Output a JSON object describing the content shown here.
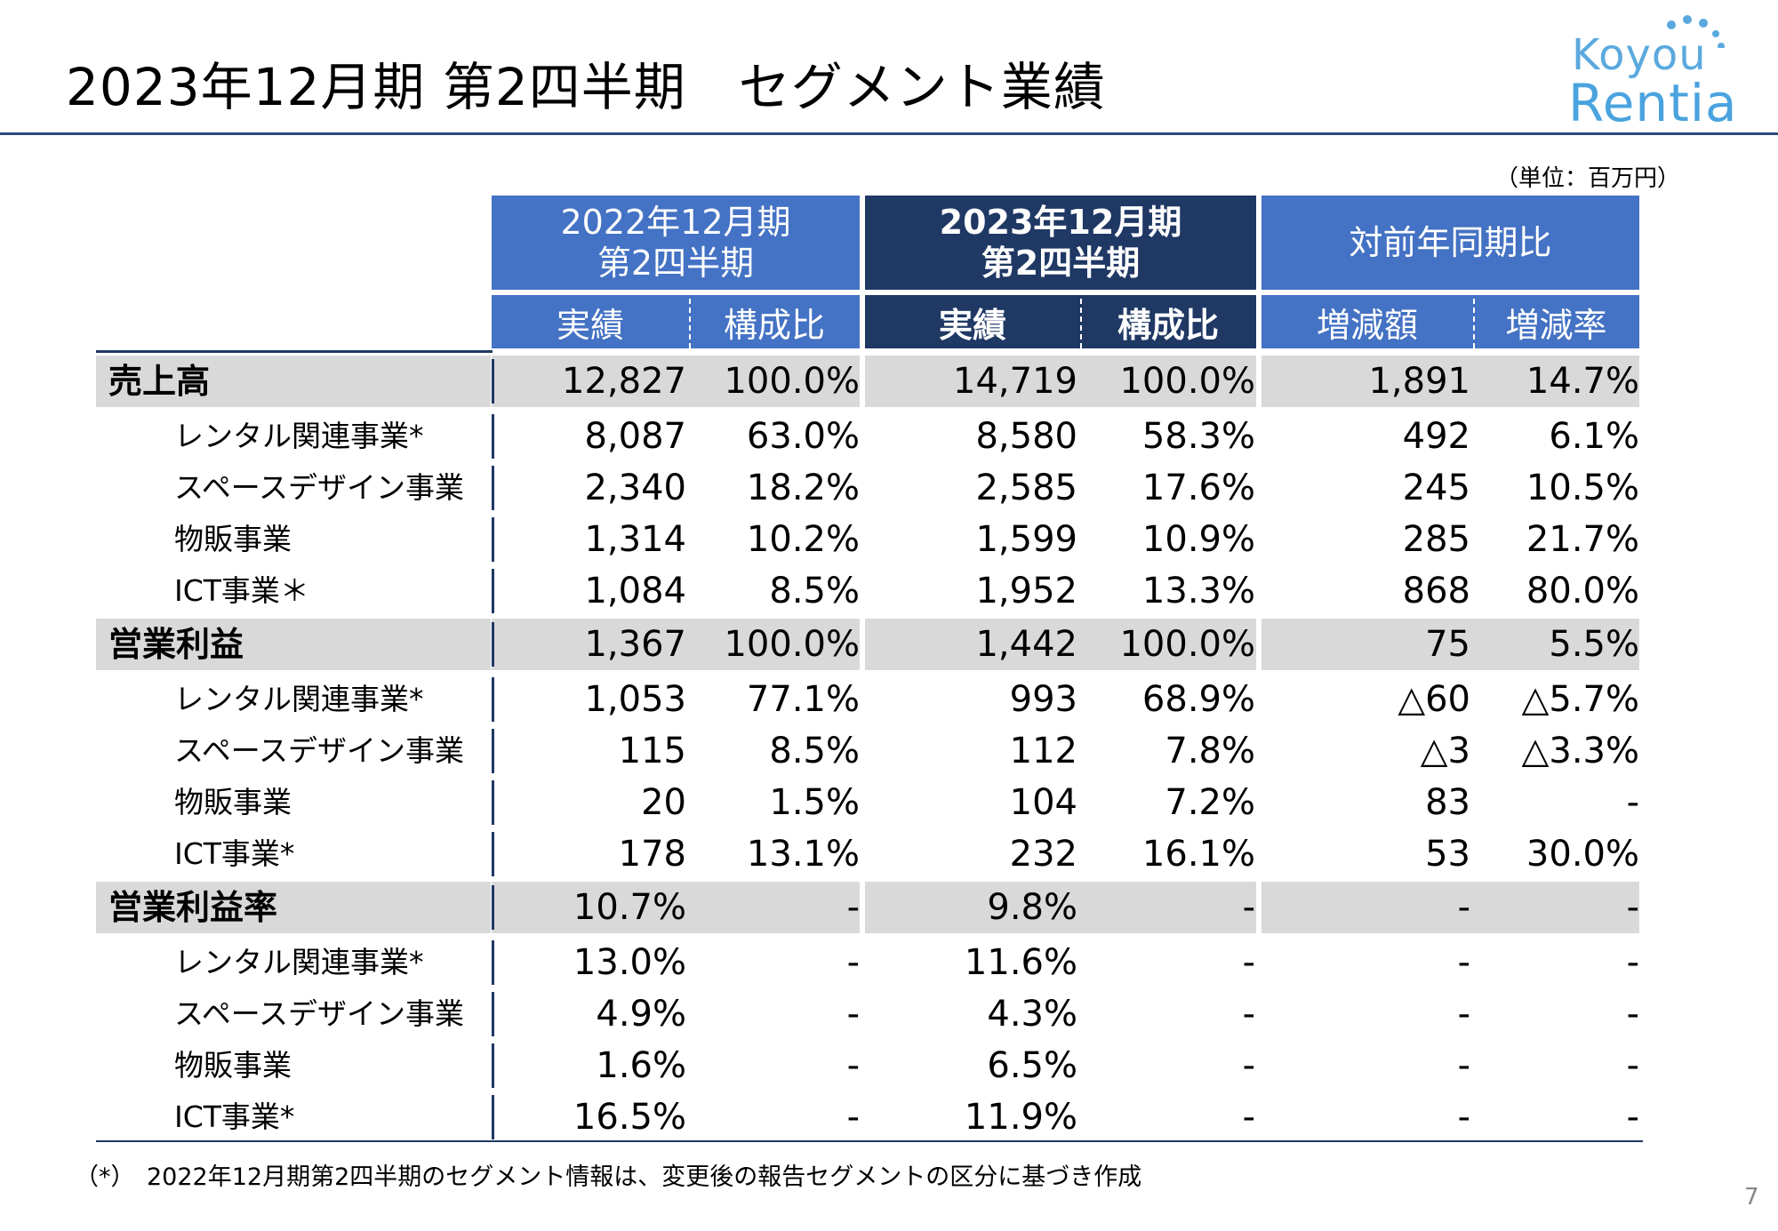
{
  "title": "2023年12月期 第2四半期　セグメント業績",
  "logo": {
    "top": "Koyou",
    "bottom": "Rentia",
    "color": "#4aa3de"
  },
  "unit": "（単位：百万円）",
  "headers": {
    "prev_group": [
      "2022年12月期",
      "第2四半期"
    ],
    "curr_group": [
      "2023年12月期",
      "第2四半期"
    ],
    "yoy_group": "対前年同期比",
    "actual": "実績",
    "ratio": "構成比",
    "change_amount": "増減額",
    "change_rate": "増減率"
  },
  "colors": {
    "header_light": "#4472c4",
    "header_dark": "#1f3864",
    "band": "#d9d9d9"
  },
  "rows": [
    {
      "label": "売上高",
      "main": true,
      "values": [
        "12,827",
        "100.0%",
        "14,719",
        "100.0%",
        "1,891",
        "14.7%"
      ]
    },
    {
      "label": "レンタル関連事業*",
      "main": false,
      "values": [
        "8,087",
        "63.0%",
        "8,580",
        "58.3%",
        "492",
        "6.1%"
      ]
    },
    {
      "label": "スペースデザイン事業",
      "main": false,
      "values": [
        "2,340",
        "18.2%",
        "2,585",
        "17.6%",
        "245",
        "10.5%"
      ]
    },
    {
      "label": "物販事業",
      "main": false,
      "values": [
        "1,314",
        "10.2%",
        "1,599",
        "10.9%",
        "285",
        "21.7%"
      ]
    },
    {
      "label": "ICT事業＊",
      "main": false,
      "values": [
        "1,084",
        "8.5%",
        "1,952",
        "13.3%",
        "868",
        "80.0%"
      ]
    },
    {
      "label": "営業利益",
      "main": true,
      "values": [
        "1,367",
        "100.0%",
        "1,442",
        "100.0%",
        "75",
        "5.5%"
      ]
    },
    {
      "label": "レンタル関連事業*",
      "main": false,
      "values": [
        "1,053",
        "77.1%",
        "993",
        "68.9%",
        "△60",
        "△5.7%"
      ]
    },
    {
      "label": "スペースデザイン事業",
      "main": false,
      "values": [
        "115",
        "8.5%",
        "112",
        "7.8%",
        "△3",
        "△3.3%"
      ]
    },
    {
      "label": "物販事業",
      "main": false,
      "values": [
        "20",
        "1.5%",
        "104",
        "7.2%",
        "83",
        "-"
      ]
    },
    {
      "label": "ICT事業*",
      "main": false,
      "values": [
        "178",
        "13.1%",
        "232",
        "16.1%",
        "53",
        "30.0%"
      ]
    },
    {
      "label": "営業利益率",
      "main": true,
      "values": [
        "10.7%",
        "-",
        "9.8%",
        "-",
        "-",
        "-"
      ]
    },
    {
      "label": "レンタル関連事業*",
      "main": false,
      "values": [
        "13.0%",
        "-",
        "11.6%",
        "-",
        "-",
        "-"
      ]
    },
    {
      "label": "スペースデザイン事業",
      "main": false,
      "values": [
        "4.9%",
        "-",
        "4.3%",
        "-",
        "-",
        "-"
      ]
    },
    {
      "label": "物販事業",
      "main": false,
      "values": [
        "1.6%",
        "-",
        "6.5%",
        "-",
        "-",
        "-"
      ]
    },
    {
      "label": "ICT事業*",
      "main": false,
      "values": [
        "16.5%",
        "-",
        "11.9%",
        "-",
        "-",
        "-"
      ]
    }
  ],
  "footnote": "（*）　2022年12月期第2四半期のセグメント情報は、変更後の報告セグメントの区分に基づき作成",
  "page_number": "7"
}
